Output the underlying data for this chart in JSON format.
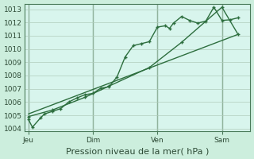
{
  "background_color": "#cceedd",
  "plot_bg_color": "#d8f5ed",
  "grid_color": "#b0ccbb",
  "line_color": "#2d6e3e",
  "marker_color": "#2d6e3e",
  "title": "Pression niveau de la mer( hPa )",
  "ylabel_ticks": [
    1004,
    1005,
    1006,
    1007,
    1008,
    1009,
    1010,
    1011,
    1012,
    1013
  ],
  "xlabels": [
    "Jeu",
    "Dim",
    "Ven",
    "Sam"
  ],
  "xlabels_pos": [
    0,
    8,
    16,
    24
  ],
  "line1_x": [
    0,
    0.5,
    1.5,
    2,
    3,
    4,
    5,
    6,
    7,
    8,
    9,
    10,
    11,
    12,
    13,
    14,
    15,
    16,
    17,
    17.5,
    18,
    19,
    20,
    21,
    22,
    23,
    24,
    25,
    26
  ],
  "line1_y": [
    1004.7,
    1004.1,
    1004.8,
    1005.1,
    1005.3,
    1005.5,
    1006.0,
    1006.3,
    1006.55,
    1006.65,
    1007.05,
    1007.15,
    1007.9,
    1009.4,
    1010.25,
    1010.4,
    1010.55,
    1011.65,
    1011.75,
    1011.55,
    1011.95,
    1012.45,
    1012.15,
    1011.95,
    1012.1,
    1013.15,
    1012.15,
    1012.2,
    1012.35
  ],
  "line2_x": [
    0,
    3,
    7,
    10,
    15,
    19,
    24,
    26
  ],
  "line2_y": [
    1004.9,
    1005.4,
    1006.35,
    1007.2,
    1008.6,
    1010.5,
    1013.15,
    1011.1
  ],
  "line3_x": [
    0,
    26
  ],
  "line3_y": [
    1005.1,
    1011.1
  ],
  "ylim_min": 1003.8,
  "ylim_max": 1013.4,
  "xlim_min": -0.5,
  "xlim_max": 27.5,
  "title_fontsize": 8,
  "tick_fontsize": 6.5
}
